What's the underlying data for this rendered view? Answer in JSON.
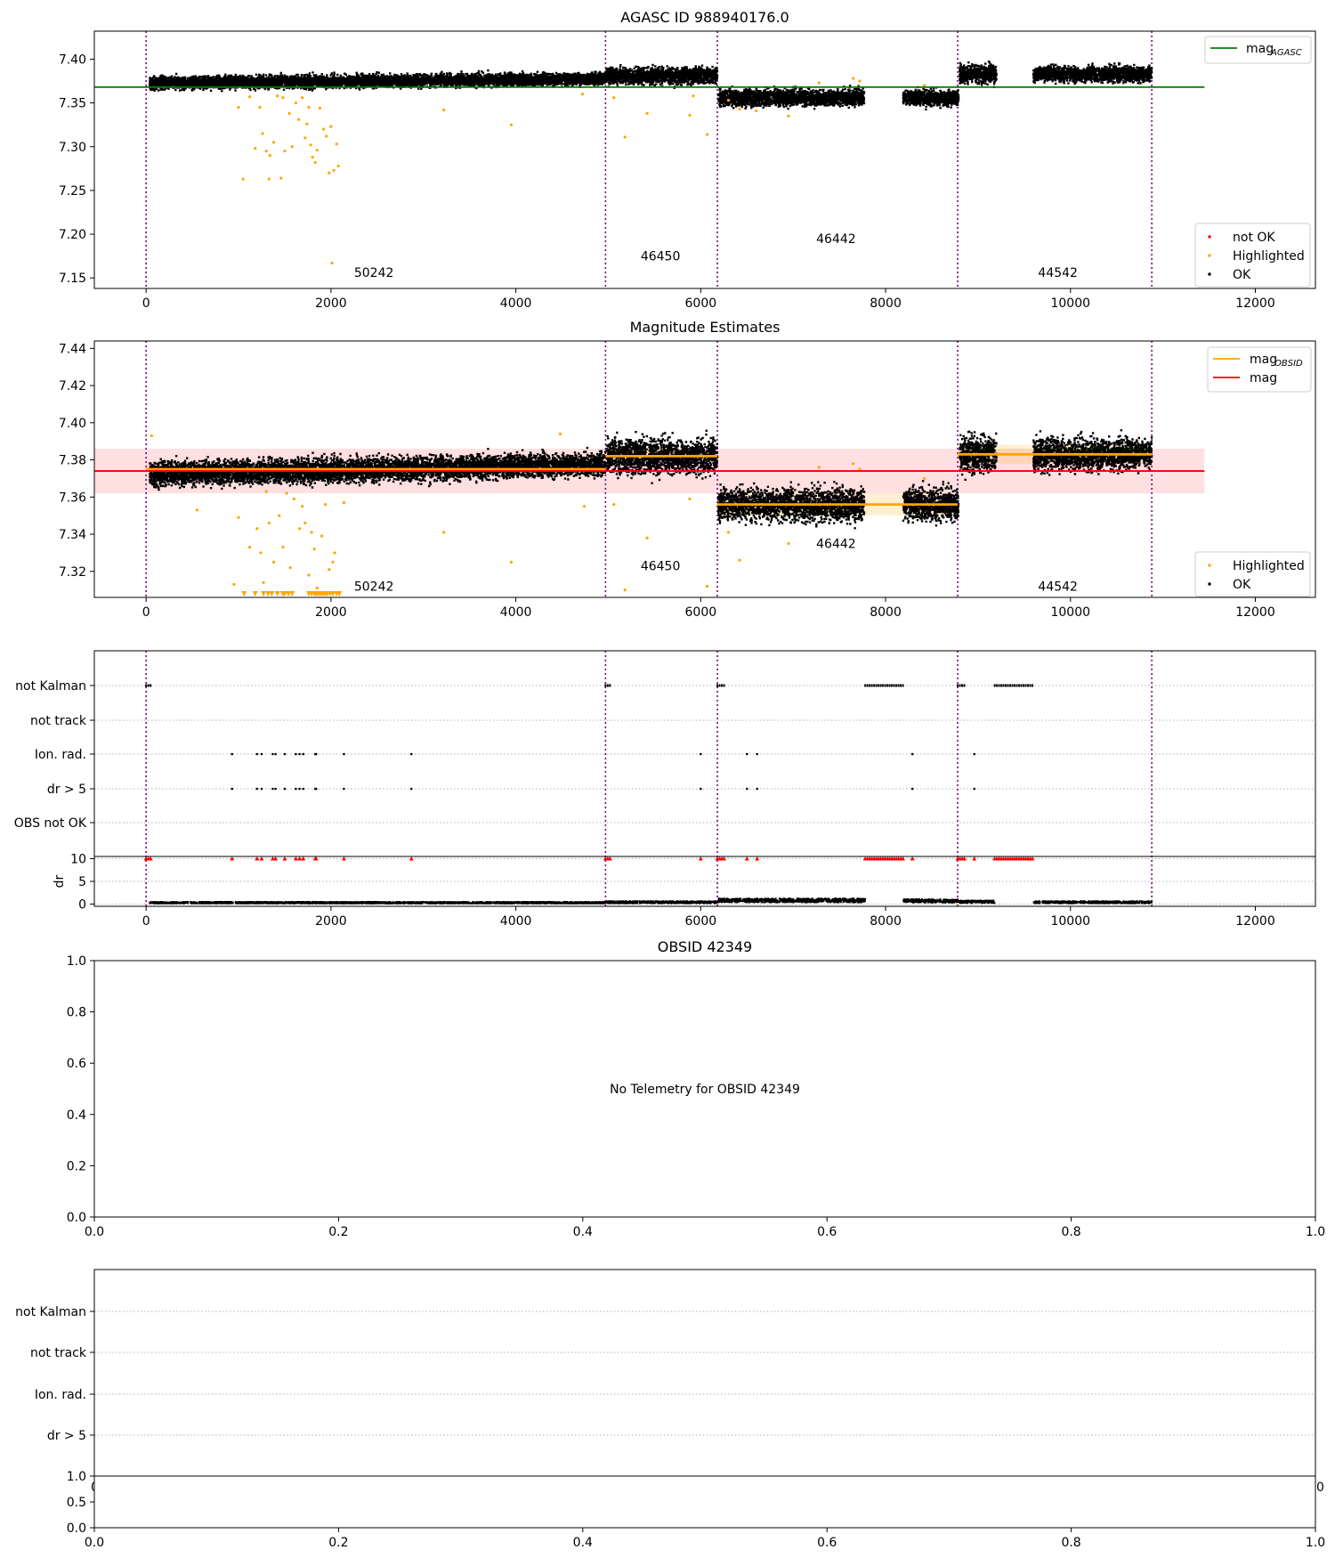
{
  "chart_data": [
    {
      "id": "agasc",
      "type": "scatter",
      "title": "AGASC ID 988940176.0",
      "xlim": [
        -560,
        12650
      ],
      "ylim": [
        7.138,
        7.432
      ],
      "xticks": [
        0,
        2000,
        4000,
        6000,
        8000,
        10000,
        12000
      ],
      "yticks": [
        7.15,
        7.2,
        7.25,
        7.3,
        7.35,
        7.4
      ],
      "ytick_labels": [
        "7.15",
        "7.20",
        "7.25",
        "7.30",
        "7.35",
        "7.40"
      ],
      "grid": false,
      "obsid_boundaries": [
        0,
        4970,
        6180,
        8780,
        10880
      ],
      "obsid_labels": [
        {
          "text": "50242",
          "x": 2250,
          "y": 7.151
        },
        {
          "text": "46450",
          "x": 5350,
          "y": 7.17
        },
        {
          "text": "46442",
          "x": 7250,
          "y": 7.19
        },
        {
          "text": "44542",
          "x": 9650,
          "y": 7.151
        }
      ],
      "segments": [
        {
          "x0": 40,
          "x1": 4970,
          "center": 7.375,
          "spread": 0.005,
          "slope": 0.005,
          "density": 1.3
        },
        {
          "x0": 4980,
          "x1": 6180,
          "center": 7.381,
          "spread": 0.0065,
          "slope": 0,
          "density": 1.3
        },
        {
          "x0": 6190,
          "x1": 7770,
          "center": 7.356,
          "spread": 0.0065,
          "slope": 0,
          "density": 1.3
        },
        {
          "x0": 8190,
          "x1": 8790,
          "center": 7.356,
          "spread": 0.006,
          "slope": 0,
          "density": 1.3
        },
        {
          "x0": 8800,
          "x1": 9200,
          "center": 7.383,
          "spread": 0.007,
          "slope": 0,
          "density": 1.3
        },
        {
          "x0": 9600,
          "x1": 10880,
          "center": 7.383,
          "spread": 0.006,
          "slope": 0,
          "density": 1.3
        }
      ],
      "highlighted": [
        [
          1000,
          7.345
        ],
        [
          1050,
          7.263
        ],
        [
          1120,
          7.357
        ],
        [
          1180,
          7.298
        ],
        [
          1230,
          7.345
        ],
        [
          1260,
          7.315
        ],
        [
          1300,
          7.295
        ],
        [
          1330,
          7.263
        ],
        [
          1340,
          7.29
        ],
        [
          1380,
          7.305
        ],
        [
          1420,
          7.358
        ],
        [
          1460,
          7.264
        ],
        [
          1480,
          7.356
        ],
        [
          1500,
          7.295
        ],
        [
          1550,
          7.338
        ],
        [
          1580,
          7.3
        ],
        [
          1620,
          7.35
        ],
        [
          1650,
          7.331
        ],
        [
          1690,
          7.356
        ],
        [
          1720,
          7.31
        ],
        [
          1740,
          7.326
        ],
        [
          1760,
          7.345
        ],
        [
          1780,
          7.302
        ],
        [
          1800,
          7.288
        ],
        [
          1830,
          7.282
        ],
        [
          1850,
          7.296
        ],
        [
          1880,
          7.344
        ],
        [
          1920,
          7.32
        ],
        [
          1950,
          7.312
        ],
        [
          1980,
          7.27
        ],
        [
          2000,
          7.323
        ],
        [
          2010,
          7.167
        ],
        [
          2030,
          7.273
        ],
        [
          2060,
          7.303
        ],
        [
          2080,
          7.278
        ],
        [
          3220,
          7.342
        ],
        [
          3950,
          7.325
        ],
        [
          4720,
          7.36
        ],
        [
          5060,
          7.356
        ],
        [
          5180,
          7.311
        ],
        [
          5420,
          7.338
        ],
        [
          5880,
          7.336
        ],
        [
          5920,
          7.358
        ],
        [
          6070,
          7.314
        ],
        [
          6300,
          7.353
        ],
        [
          6420,
          7.343
        ],
        [
          6600,
          7.341
        ],
        [
          6950,
          7.335
        ],
        [
          7280,
          7.373
        ],
        [
          7650,
          7.378
        ],
        [
          7720,
          7.375
        ],
        [
          8420,
          7.37
        ]
      ],
      "legend_lines": [
        {
          "label": "mag",
          "sub": "AGASC",
          "color": "#008000",
          "y": 7.368,
          "x0": -560,
          "x1": 11450
        }
      ],
      "legend_points": [
        {
          "label": "not OK",
          "color": "#ff0000"
        },
        {
          "label": "Highlighted",
          "color": "#ffa500"
        },
        {
          "label": "OK",
          "color": "#000000"
        }
      ]
    },
    {
      "id": "estimates",
      "type": "scatter",
      "title": "Magnitude Estimates",
      "xlim": [
        -560,
        12650
      ],
      "ylim": [
        7.306,
        7.444
      ],
      "xticks": [
        0,
        2000,
        4000,
        6000,
        8000,
        10000,
        12000
      ],
      "yticks": [
        7.32,
        7.34,
        7.36,
        7.38,
        7.4,
        7.42,
        7.44
      ],
      "ytick_labels": [
        "7.32",
        "7.34",
        "7.36",
        "7.38",
        "7.40",
        "7.42",
        "7.44"
      ],
      "grid": false,
      "obsid_boundaries": [
        0,
        4970,
        6180,
        8780,
        10880
      ],
      "obsid_labels": [
        {
          "text": "50242",
          "x": 2250,
          "y": 7.3095
        },
        {
          "text": "46450",
          "x": 5350,
          "y": 7.3205
        },
        {
          "text": "46442",
          "x": 7250,
          "y": 7.3325
        },
        {
          "text": "44542",
          "x": 9650,
          "y": 7.3095
        }
      ],
      "mag": {
        "value": 7.374,
        "band": [
          7.362,
          7.386
        ],
        "x0": -560,
        "x1": 11450,
        "color": "#ff0000"
      },
      "obsid_mags": [
        {
          "x0": 0,
          "x1": 4970,
          "value": 7.375,
          "band": [
            7.373,
            7.378
          ]
        },
        {
          "x0": 4970,
          "x1": 6180,
          "value": 7.382,
          "band": [
            7.38,
            7.385
          ]
        },
        {
          "x0": 6180,
          "x1": 8780,
          "value": 7.356,
          "band": [
            7.35,
            7.362
          ]
        },
        {
          "x0": 8780,
          "x1": 10880,
          "value": 7.383,
          "band": [
            7.378,
            7.388
          ]
        }
      ],
      "segments": [
        {
          "x0": 40,
          "x1": 4970,
          "center": 7.375,
          "spread": 0.0045,
          "slope": 0.005,
          "density": 1.3
        },
        {
          "x0": 4980,
          "x1": 6180,
          "center": 7.382,
          "spread": 0.0065,
          "slope": 0,
          "density": 1.3
        },
        {
          "x0": 6190,
          "x1": 7770,
          "center": 7.356,
          "spread": 0.006,
          "slope": 0,
          "density": 1.3
        },
        {
          "x0": 8190,
          "x1": 8790,
          "center": 7.356,
          "spread": 0.006,
          "slope": 0,
          "density": 1.3
        },
        {
          "x0": 8800,
          "x1": 9200,
          "center": 7.383,
          "spread": 0.007,
          "slope": 0,
          "density": 1.3
        },
        {
          "x0": 9600,
          "x1": 10880,
          "center": 7.383,
          "spread": 0.006,
          "slope": 0,
          "density": 1.3
        }
      ],
      "highlighted": [
        [
          60,
          7.393
        ],
        [
          550,
          7.353
        ],
        [
          950,
          7.313
        ],
        [
          1000,
          7.349
        ],
        [
          1120,
          7.333
        ],
        [
          1200,
          7.343
        ],
        [
          1240,
          7.33
        ],
        [
          1270,
          7.314
        ],
        [
          1300,
          7.363
        ],
        [
          1330,
          7.346
        ],
        [
          1380,
          7.325
        ],
        [
          1440,
          7.35
        ],
        [
          1480,
          7.333
        ],
        [
          1520,
          7.362
        ],
        [
          1560,
          7.322
        ],
        [
          1600,
          7.359
        ],
        [
          1660,
          7.343
        ],
        [
          1690,
          7.355
        ],
        [
          1720,
          7.346
        ],
        [
          1760,
          7.318
        ],
        [
          1790,
          7.341
        ],
        [
          1820,
          7.332
        ],
        [
          1850,
          7.311
        ],
        [
          1900,
          7.339
        ],
        [
          1940,
          7.356
        ],
        [
          1980,
          7.321
        ],
        [
          2020,
          7.325
        ],
        [
          2040,
          7.33
        ],
        [
          2140,
          7.357
        ],
        [
          3220,
          7.341
        ],
        [
          3950,
          7.325
        ],
        [
          4480,
          7.394
        ],
        [
          4740,
          7.355
        ],
        [
          5060,
          7.356
        ],
        [
          5180,
          7.31
        ],
        [
          5420,
          7.338
        ],
        [
          5880,
          7.359
        ],
        [
          6070,
          7.312
        ],
        [
          6300,
          7.341
        ],
        [
          6420,
          7.326
        ],
        [
          6950,
          7.335
        ],
        [
          7280,
          7.376
        ],
        [
          7650,
          7.378
        ],
        [
          7720,
          7.375
        ],
        [
          8420,
          7.37
        ]
      ],
      "clipped": [
        1060,
        1180,
        1270,
        1320,
        1360,
        1420,
        1480,
        1500,
        1540,
        1580,
        1760,
        1790,
        1820,
        1840,
        1860,
        1880,
        1900,
        1920,
        1940,
        1960,
        1990,
        2020,
        2060,
        2090
      ],
      "legend_lines": [
        {
          "label": "mag",
          "sub": "OBSID",
          "color": "#ffa500"
        },
        {
          "label": "mag",
          "sub": "",
          "color": "#ff0000"
        }
      ],
      "legend_points": [
        {
          "label": "Highlighted",
          "color": "#ffa500"
        },
        {
          "label": "OK",
          "color": "#000000"
        }
      ]
    },
    {
      "id": "flags",
      "type": "scatter",
      "xlim": [
        -560,
        12650
      ],
      "xticks": [
        0,
        2000,
        4000,
        6000,
        8000,
        10000,
        12000
      ],
      "rows": [
        "not Kalman",
        "not track",
        "Ion. rad.",
        "dr > 5",
        "OBS not OK"
      ],
      "obsid_boundaries": [
        0,
        4970,
        6180,
        8780,
        10880
      ],
      "not_kalman_ranges": [
        [
          0,
          60
        ],
        [
          4970,
          5040
        ],
        [
          6180,
          6260
        ],
        [
          7780,
          8200
        ],
        [
          8780,
          8860
        ],
        [
          9180,
          9600
        ]
      ],
      "ion_rad": [
        930,
        1200,
        1250,
        1370,
        1400,
        1500,
        1620,
        1660,
        1700,
        1830,
        1840,
        2140,
        2870,
        6000,
        6500,
        6610,
        8290,
        8960
      ],
      "dr_gt5": [
        930,
        1200,
        1250,
        1370,
        1400,
        1500,
        1620,
        1660,
        1700,
        1830,
        1840,
        2140,
        2870,
        6000,
        6500,
        6610,
        8290,
        8960
      ],
      "dr": {
        "ylabel": "dr",
        "ylim": [
          -0.5,
          10.5
        ],
        "yticks": [
          0,
          5,
          10
        ],
        "ytick_labels": [
          "0",
          "5",
          "10"
        ],
        "clip_value": 10,
        "segments": [
          {
            "x0": 40,
            "x1": 4970,
            "level": 0.3
          },
          {
            "x0": 4980,
            "x1": 6180,
            "level": 0.4
          },
          {
            "x0": 6190,
            "x1": 7780,
            "level": 0.8
          },
          {
            "x0": 8190,
            "x1": 8790,
            "level": 0.7
          },
          {
            "x0": 8800,
            "x1": 9180,
            "level": 0.5
          },
          {
            "x0": 9600,
            "x1": 10880,
            "level": 0.4
          }
        ]
      }
    },
    {
      "id": "obsid-42349",
      "type": "scatter",
      "title": "OBSID 42349",
      "message": "No Telemetry for OBSID 42349",
      "xlim": [
        0,
        1
      ],
      "ylim": [
        0,
        1
      ],
      "xticks": [
        0,
        0.2,
        0.4,
        0.6,
        0.8,
        1.0
      ],
      "xtick_labels": [
        "0.0",
        "0.2",
        "0.4",
        "0.6",
        "0.8",
        "1.0"
      ],
      "yticks": [
        0,
        0.2,
        0.4,
        0.6,
        0.8,
        1.0
      ],
      "ytick_labels": [
        "0.0",
        "0.2",
        "0.4",
        "0.6",
        "0.8",
        "1.0"
      ]
    },
    {
      "id": "flags-empty",
      "type": "scatter",
      "rows": [
        "not Kalman",
        "not track",
        "Ion. rad.",
        "dr > 5"
      ],
      "hidden_xtick_labels": [
        "0",
        "0"
      ],
      "sub": {
        "xticks": [
          0,
          0.2,
          0.4,
          0.6,
          0.8,
          1.0
        ],
        "xtick_labels": [
          "0.0",
          "0.2",
          "0.4",
          "0.6",
          "0.8",
          "1.0"
        ],
        "yticks": [
          0,
          0.5,
          1.0
        ],
        "ytick_labels": [
          "0.0",
          "0.5",
          "1.0"
        ]
      }
    }
  ]
}
